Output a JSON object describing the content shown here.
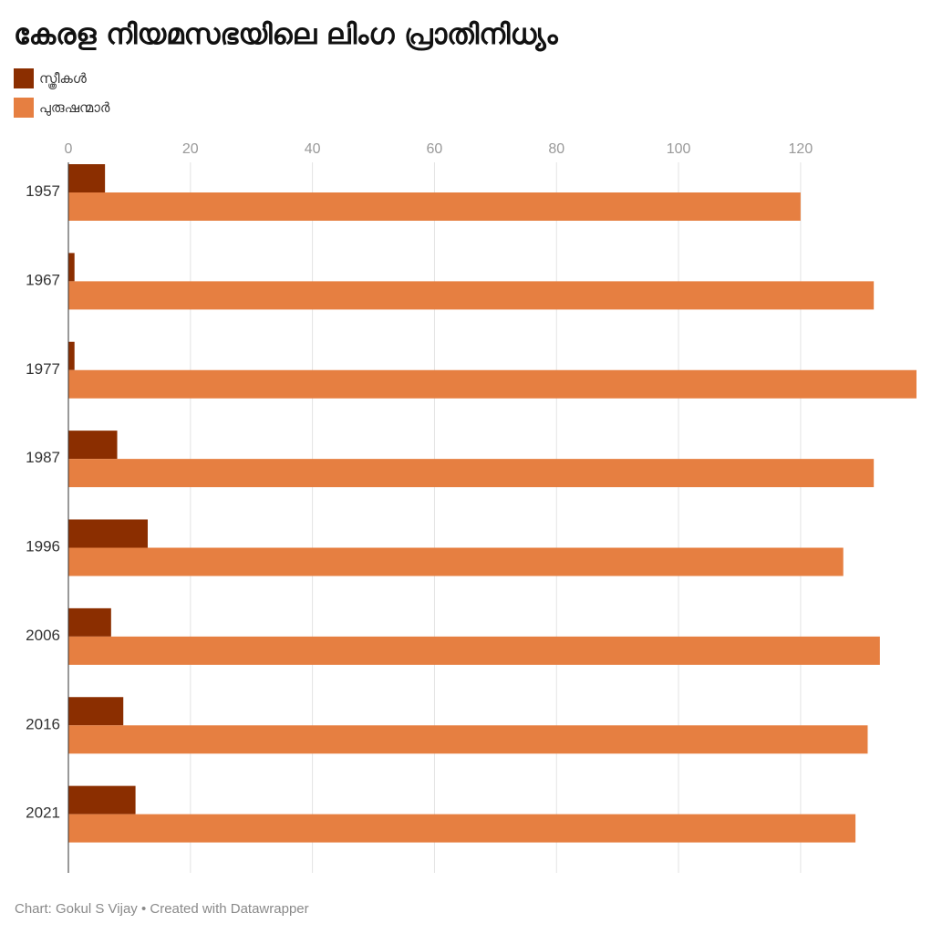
{
  "chart_data": {
    "type": "bar",
    "orientation": "horizontal",
    "title": "കേരള നിയമസഭയിലെ ലിംഗ പ്രാതിനിധ്യം",
    "categories": [
      "1957",
      "1967",
      "1977",
      "1987",
      "1996",
      "2006",
      "2016",
      "2021"
    ],
    "series": [
      {
        "name": "സ്ത്രീകൾ",
        "color": "#8B2E00",
        "values": [
          6,
          1,
          1,
          8,
          13,
          7,
          9,
          11
        ]
      },
      {
        "name": "പുരുഷന്മാർ",
        "color": "#E67F41",
        "values": [
          120,
          132,
          139,
          132,
          127,
          133,
          131,
          129
        ]
      }
    ],
    "xticks": [
      0,
      20,
      40,
      60,
      80,
      100,
      120
    ],
    "xlim": [
      0,
      139
    ],
    "grid": true,
    "legend_position": "top-left",
    "source": "Chart: Gokul S Vijay • Created with Datawrapper"
  }
}
